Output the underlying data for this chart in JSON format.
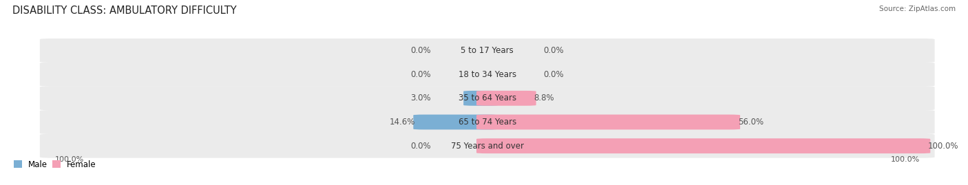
{
  "title": "DISABILITY CLASS: AMBULATORY DIFFICULTY",
  "source": "Source: ZipAtlas.com",
  "categories": [
    "5 to 17 Years",
    "18 to 34 Years",
    "35 to 64 Years",
    "65 to 74 Years",
    "75 Years and over"
  ],
  "male_values": [
    0.0,
    0.0,
    3.0,
    14.6,
    0.0
  ],
  "female_values": [
    0.0,
    0.0,
    8.8,
    56.0,
    100.0
  ],
  "male_color": "#7bafd4",
  "female_color": "#f4a0b5",
  "row_bg_color": "#ebebeb",
  "max_value": 100.0,
  "legend_male": "Male",
  "legend_female": "Female",
  "title_fontsize": 10.5,
  "label_fontsize": 8.5,
  "axis_label_fontsize": 8,
  "background_color": "#ffffff"
}
